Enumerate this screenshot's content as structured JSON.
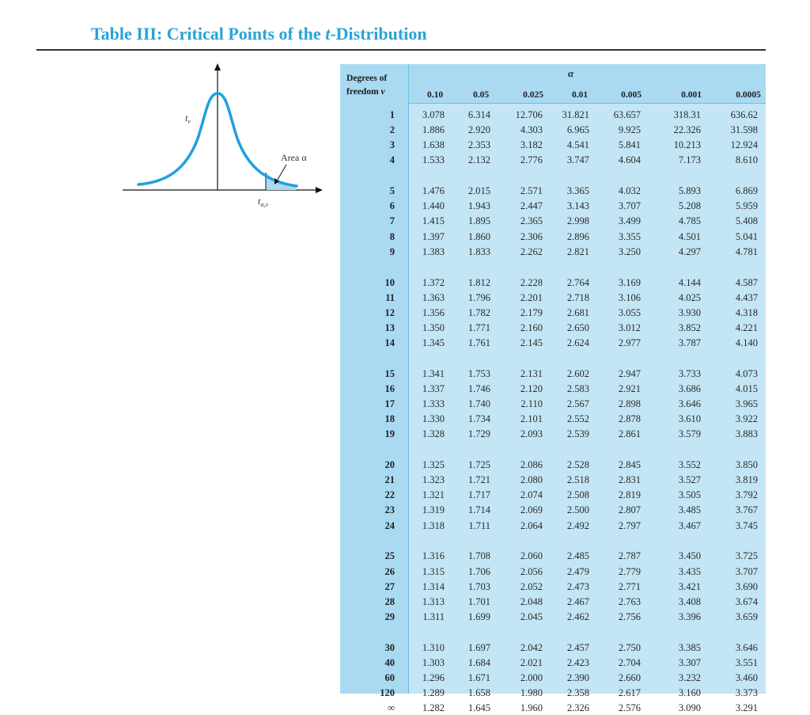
{
  "title": {
    "prefix": "Table III: Critical Points of the ",
    "variable": "t",
    "suffix": "-Distribution"
  },
  "figure": {
    "peak_label": "t",
    "peak_subscript": "ν",
    "area_label": "Area α",
    "critical_label": "t",
    "critical_subscript": "α,ν"
  },
  "table": {
    "alpha_label": "α",
    "df_header_line1": "Degrees of",
    "df_header_line2": "freedom",
    "df_header_symbol": "ν",
    "alpha_values": [
      "0.10",
      "0.05",
      "0.025",
      "0.01",
      "0.005",
      "0.001",
      "0.0005"
    ],
    "groups": [
      [
        {
          "df": "1",
          "v": [
            "3.078",
            "6.314",
            "12.706",
            "31.821",
            "63.657",
            "318.31",
            "636.62"
          ]
        },
        {
          "df": "2",
          "v": [
            "1.886",
            "2.920",
            "4.303",
            "6.965",
            "9.925",
            "22.326",
            "31.598"
          ]
        },
        {
          "df": "3",
          "v": [
            "1.638",
            "2.353",
            "3.182",
            "4.541",
            "5.841",
            "10.213",
            "12.924"
          ]
        },
        {
          "df": "4",
          "v": [
            "1.533",
            "2.132",
            "2.776",
            "3.747",
            "4.604",
            "7.173",
            "8.610"
          ]
        }
      ],
      [
        {
          "df": "5",
          "v": [
            "1.476",
            "2.015",
            "2.571",
            "3.365",
            "4.032",
            "5.893",
            "6.869"
          ]
        },
        {
          "df": "6",
          "v": [
            "1.440",
            "1.943",
            "2.447",
            "3.143",
            "3.707",
            "5.208",
            "5.959"
          ]
        },
        {
          "df": "7",
          "v": [
            "1.415",
            "1.895",
            "2.365",
            "2.998",
            "3.499",
            "4.785",
            "5.408"
          ]
        },
        {
          "df": "8",
          "v": [
            "1.397",
            "1.860",
            "2.306",
            "2.896",
            "3.355",
            "4.501",
            "5.041"
          ]
        },
        {
          "df": "9",
          "v": [
            "1.383",
            "1.833",
            "2.262",
            "2.821",
            "3.250",
            "4.297",
            "4.781"
          ]
        }
      ],
      [
        {
          "df": "10",
          "v": [
            "1.372",
            "1.812",
            "2.228",
            "2.764",
            "3.169",
            "4.144",
            "4.587"
          ]
        },
        {
          "df": "11",
          "v": [
            "1.363",
            "1.796",
            "2.201",
            "2.718",
            "3.106",
            "4.025",
            "4.437"
          ]
        },
        {
          "df": "12",
          "v": [
            "1.356",
            "1.782",
            "2.179",
            "2.681",
            "3.055",
            "3.930",
            "4.318"
          ]
        },
        {
          "df": "13",
          "v": [
            "1.350",
            "1.771",
            "2.160",
            "2.650",
            "3.012",
            "3.852",
            "4.221"
          ]
        },
        {
          "df": "14",
          "v": [
            "1.345",
            "1.761",
            "2.145",
            "2.624",
            "2.977",
            "3.787",
            "4.140"
          ]
        }
      ],
      [
        {
          "df": "15",
          "v": [
            "1.341",
            "1.753",
            "2.131",
            "2.602",
            "2.947",
            "3.733",
            "4.073"
          ]
        },
        {
          "df": "16",
          "v": [
            "1.337",
            "1.746",
            "2.120",
            "2.583",
            "2.921",
            "3.686",
            "4.015"
          ]
        },
        {
          "df": "17",
          "v": [
            "1.333",
            "1.740",
            "2.110",
            "2.567",
            "2.898",
            "3.646",
            "3.965"
          ]
        },
        {
          "df": "18",
          "v": [
            "1.330",
            "1.734",
            "2.101",
            "2.552",
            "2.878",
            "3.610",
            "3.922"
          ]
        },
        {
          "df": "19",
          "v": [
            "1.328",
            "1.729",
            "2.093",
            "2.539",
            "2.861",
            "3.579",
            "3.883"
          ]
        }
      ],
      [
        {
          "df": "20",
          "v": [
            "1.325",
            "1.725",
            "2.086",
            "2.528",
            "2.845",
            "3.552",
            "3.850"
          ]
        },
        {
          "df": "21",
          "v": [
            "1.323",
            "1.721",
            "2.080",
            "2.518",
            "2.831",
            "3.527",
            "3.819"
          ]
        },
        {
          "df": "22",
          "v": [
            "1.321",
            "1.717",
            "2.074",
            "2.508",
            "2.819",
            "3.505",
            "3.792"
          ]
        },
        {
          "df": "23",
          "v": [
            "1.319",
            "1.714",
            "2.069",
            "2.500",
            "2.807",
            "3.485",
            "3.767"
          ]
        },
        {
          "df": "24",
          "v": [
            "1.318",
            "1.711",
            "2.064",
            "2.492",
            "2.797",
            "3.467",
            "3.745"
          ]
        }
      ],
      [
        {
          "df": "25",
          "v": [
            "1.316",
            "1.708",
            "2.060",
            "2.485",
            "2.787",
            "3.450",
            "3.725"
          ]
        },
        {
          "df": "26",
          "v": [
            "1.315",
            "1.706",
            "2.056",
            "2.479",
            "2.779",
            "3.435",
            "3.707"
          ]
        },
        {
          "df": "27",
          "v": [
            "1.314",
            "1.703",
            "2.052",
            "2.473",
            "2.771",
            "3.421",
            "3.690"
          ]
        },
        {
          "df": "28",
          "v": [
            "1.313",
            "1.701",
            "2.048",
            "2.467",
            "2.763",
            "3.408",
            "3.674"
          ]
        },
        {
          "df": "29",
          "v": [
            "1.311",
            "1.699",
            "2.045",
            "2.462",
            "2.756",
            "3.396",
            "3.659"
          ]
        }
      ],
      [
        {
          "df": "30",
          "v": [
            "1.310",
            "1.697",
            "2.042",
            "2.457",
            "2.750",
            "3.385",
            "3.646"
          ]
        },
        {
          "df": "40",
          "v": [
            "1.303",
            "1.684",
            "2.021",
            "2.423",
            "2.704",
            "3.307",
            "3.551"
          ]
        },
        {
          "df": "60",
          "v": [
            "1.296",
            "1.671",
            "2.000",
            "2.390",
            "2.660",
            "3.232",
            "3.460"
          ]
        },
        {
          "df": "120",
          "v": [
            "1.289",
            "1.658",
            "1.980",
            "2.358",
            "2.617",
            "3.160",
            "3.373"
          ]
        },
        {
          "df": "∞",
          "v": [
            "1.282",
            "1.645",
            "1.960",
            "2.326",
            "2.576",
            "3.090",
            "3.291"
          ]
        }
      ]
    ]
  }
}
